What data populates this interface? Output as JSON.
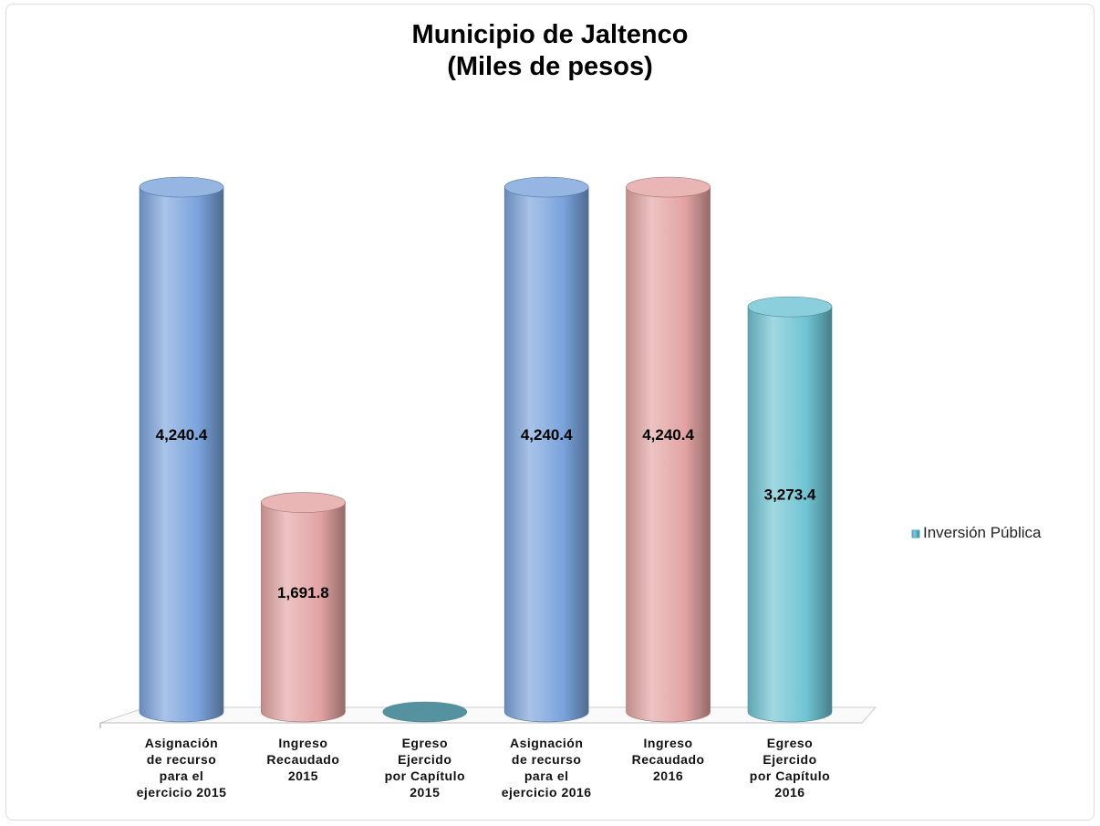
{
  "chart_data": {
    "type": "bar",
    "title": "Municipio de Jaltenco",
    "subtitle": "(Miles de pesos)",
    "categories": [
      "Asignación\nde recurso\npara el\nejercicio 2015",
      "Ingreso\nRecaudado\n2015",
      "Egreso\nEjercido\npor Capítulo\n2015",
      "Asignación\nde recurso\npara el\nejercicio 2016",
      "Ingreso\nRecaudado\n2016",
      "Egreso\nEjercido\npor Capítulo\n2016"
    ],
    "series": [
      {
        "name": "Inversión Pública",
        "color": "#4bacc6",
        "values": [
          4240.4,
          1691.8,
          0,
          4240.4,
          4240.4,
          3273.4
        ],
        "value_labels": [
          "4,240.4",
          "1,691.8",
          null,
          "4,240.4",
          "4,240.4",
          "3,273.4"
        ],
        "colors": [
          "#7aa3dc",
          "#e3a3a3",
          "#6fc3d3",
          "#7aa3dc",
          "#e3a3a3",
          "#6fc3d3"
        ]
      }
    ],
    "legend": "right"
  }
}
